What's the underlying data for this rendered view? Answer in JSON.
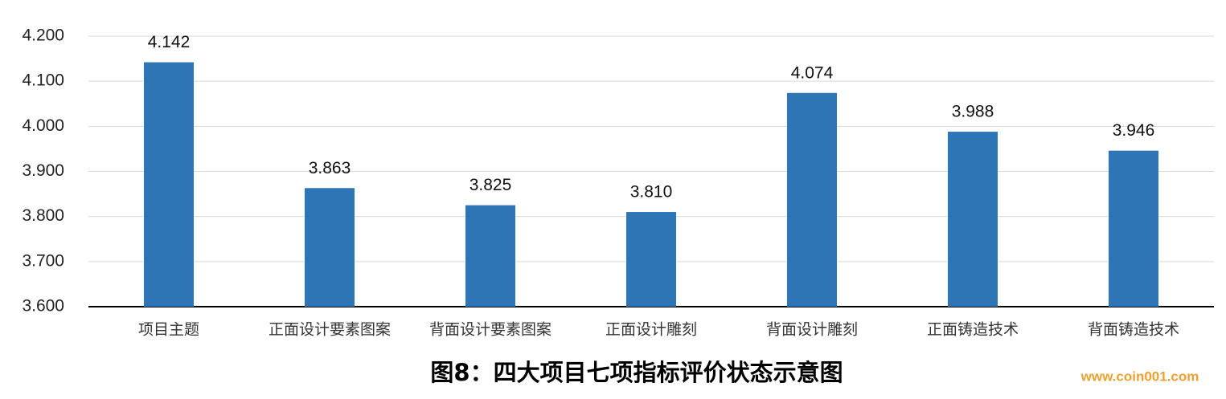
{
  "chart_data": {
    "type": "bar",
    "title": "图8：四大项目七项指标评价状态示意图",
    "watermark": "www.coin001.com",
    "categories": [
      "项目主题",
      "正面设计要素图案",
      "背面设计要素图案",
      "正面设计雕刻",
      "背面设计雕刻",
      "正面铸造技术",
      "背面铸造技术"
    ],
    "values": [
      4.142,
      3.863,
      3.825,
      3.81,
      4.074,
      3.988,
      3.946
    ],
    "value_labels": [
      "4.142",
      "3.863",
      "3.825",
      "3.810",
      "4.074",
      "3.988",
      "3.946"
    ],
    "color": "#2e75b6",
    "ylim": [
      3.6,
      4.2
    ],
    "yticks": [
      {
        "value": 3.6,
        "label": "3.600"
      },
      {
        "value": 3.7,
        "label": "3.700"
      },
      {
        "value": 3.8,
        "label": "3.800"
      },
      {
        "value": 3.9,
        "label": "3.900"
      },
      {
        "value": 4.0,
        "label": "4.000"
      },
      {
        "value": 4.1,
        "label": "4.100"
      },
      {
        "value": 4.2,
        "label": "4.200"
      }
    ],
    "grid": true
  }
}
